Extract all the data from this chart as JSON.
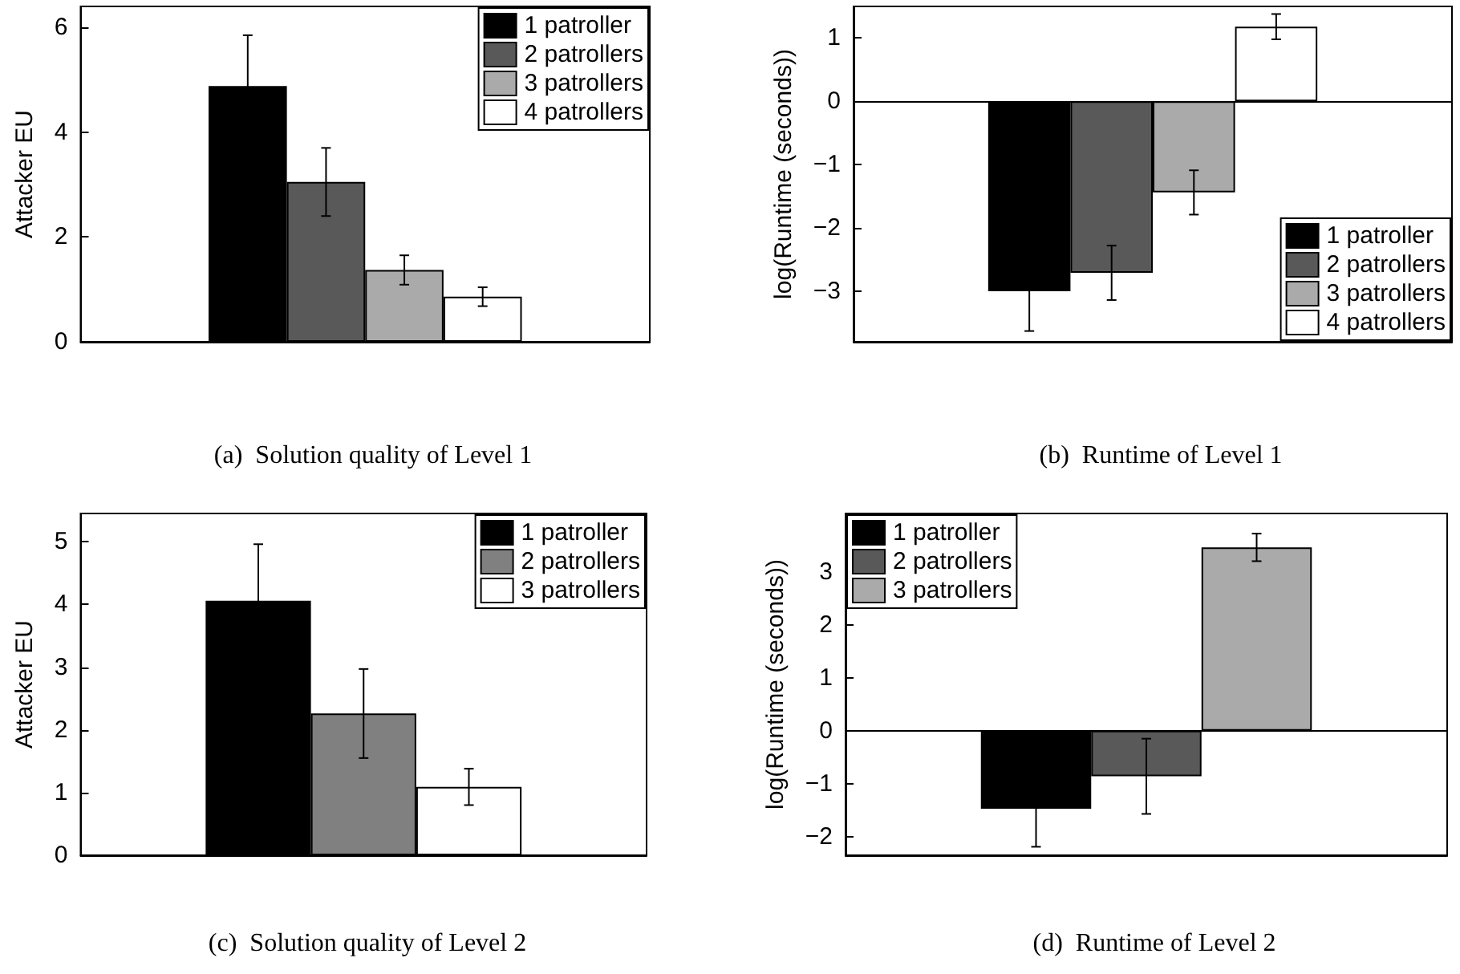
{
  "chart_data": [
    {
      "type": "bar",
      "title": "(a)  Solution quality of Level 1",
      "ylabel": "Attacker EU",
      "categories": [
        null
      ],
      "ylim": [
        0,
        6.4
      ],
      "yticks": [
        0,
        2,
        4,
        6
      ],
      "tick_labels": "y",
      "legend": "top right",
      "series": [
        {
          "name": "1 patroller",
          "color": "#000000",
          "values": [
            4.88
          ],
          "errors": [
            0.97
          ]
        },
        {
          "name": "2 patrollers",
          "color": "#595959",
          "values": [
            3.05
          ],
          "errors": [
            0.65
          ]
        },
        {
          "name": "3 patrollers",
          "color": "#aaaaaa",
          "values": [
            1.37
          ],
          "errors": [
            0.28
          ]
        },
        {
          "name": "4 patrollers",
          "color": "#ffffff",
          "values": [
            0.86
          ],
          "errors": [
            0.18
          ]
        }
      ]
    },
    {
      "type": "bar",
      "title": "(b)  Runtime of Level 1",
      "ylabel": "log(Runtime (seconds))",
      "categories": [
        null
      ],
      "ylim": [
        -3.8,
        1.5
      ],
      "yticks": [
        -3,
        -2,
        -1,
        0,
        1
      ],
      "tick_labels": "y",
      "legend": "bottom right",
      "ref_lines": [
        {
          "axis": "y",
          "value": 0,
          "color": "#000000"
        }
      ],
      "series": [
        {
          "name": "1 patroller",
          "color": "#000000",
          "values": [
            -3.0
          ],
          "errors": [
            0.63
          ]
        },
        {
          "name": "2 patrollers",
          "color": "#595959",
          "values": [
            -2.71
          ],
          "errors": [
            0.43
          ]
        },
        {
          "name": "3 patrollers",
          "color": "#aaaaaa",
          "values": [
            -1.44
          ],
          "errors": [
            0.35
          ]
        },
        {
          "name": "4 patrollers",
          "color": "#ffffff",
          "values": [
            1.18
          ],
          "errors": [
            0.2
          ]
        }
      ]
    },
    {
      "type": "bar",
      "title": "(c)  Solution quality of Level 2",
      "ylabel": "Attacker EU",
      "categories": [
        null
      ],
      "ylim": [
        0,
        5.45
      ],
      "yticks": [
        0,
        1,
        2,
        3,
        4,
        5
      ],
      "tick_labels": "y",
      "legend": "top right",
      "series": [
        {
          "name": "1 patroller",
          "color": "#000000",
          "values": [
            4.06
          ],
          "errors": [
            0.9
          ]
        },
        {
          "name": "2 patrollers",
          "color": "#808080",
          "values": [
            2.26
          ],
          "errors": [
            0.71
          ]
        },
        {
          "name": "3 patrollers",
          "color": "#ffffff",
          "values": [
            1.09
          ],
          "errors": [
            0.29
          ]
        }
      ]
    },
    {
      "type": "bar",
      "title": "(d)  Runtime of Level 2",
      "ylabel": "log(Runtime (seconds))",
      "categories": [
        null
      ],
      "ylim": [
        -2.35,
        4.1
      ],
      "yticks": [
        -2,
        -1,
        0,
        1,
        2,
        3
      ],
      "tick_labels": "y",
      "legend": "top left",
      "ref_lines": [
        {
          "axis": "y",
          "value": 0,
          "color": "#000000"
        }
      ],
      "series": [
        {
          "name": "1 patroller",
          "color": "#000000",
          "values": [
            -1.47
          ],
          "errors": [
            0.72
          ]
        },
        {
          "name": "2 patrollers",
          "color": "#595959",
          "values": [
            -0.86
          ],
          "errors": [
            0.71
          ]
        },
        {
          "name": "3 patrollers",
          "color": "#aaaaaa",
          "values": [
            3.46
          ],
          "errors": [
            0.26
          ]
        }
      ]
    }
  ]
}
